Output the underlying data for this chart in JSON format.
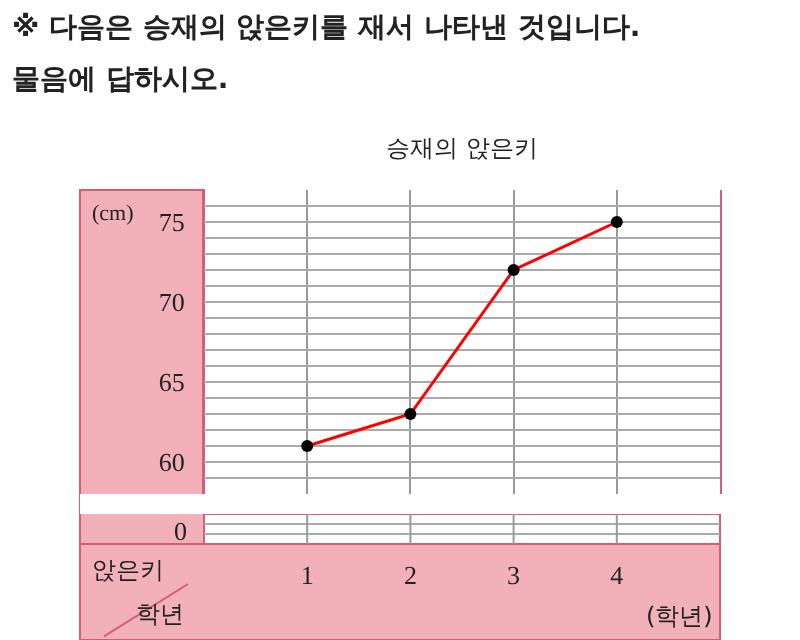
{
  "chart_data": {
    "type": "line",
    "title": "승재의 앉은키",
    "ylabel": "(cm)",
    "xlabel": "(학년)",
    "categories": [
      "1",
      "2",
      "3",
      "4"
    ],
    "series": [
      {
        "color": "#ff0000",
        "colors": [
          "#000000",
          "#000000",
          "#000000",
          "#000000"
        ],
        "values": [
          61,
          63,
          72,
          75
        ]
      }
    ],
    "ylim": [
      58,
      77
    ],
    "yticks": [
      {
        "value": 59,
        "label": null
      },
      60,
      {
        "value": 61,
        "label": null
      },
      {
        "value": 62,
        "label": null
      },
      {
        "value": 63,
        "label": null
      },
      {
        "value": 64,
        "label": null
      },
      65,
      {
        "value": 66,
        "label": null
      },
      {
        "value": 67,
        "label": null
      },
      {
        "value": 68,
        "label": null
      },
      {
        "value": 69,
        "label": null
      },
      70,
      {
        "value": 71,
        "label": null
      },
      {
        "value": 72,
        "label": null
      },
      {
        "value": 73,
        "label": null
      },
      {
        "value": 74,
        "label": null
      },
      75,
      {
        "value": 76,
        "label": null
      }
    ],
    "grid": true,
    "marker": "circle",
    "line_style": "solid",
    "annotations": [
      "※ 다음은 승재의 앉은키를 재서 나타낸 것입니다.",
      "물음에 답하시오.",
      "0",
      "앉은키",
      "학년"
    ]
  }
}
